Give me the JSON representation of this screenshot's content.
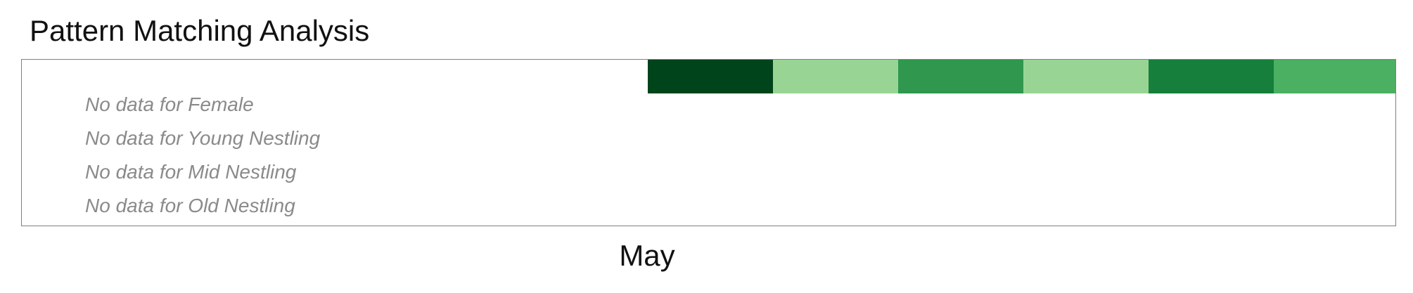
{
  "chart_data": {
    "type": "heatmap",
    "title": "Pattern Matching Analysis",
    "x_tick_labels": [
      "May"
    ],
    "rows": [
      {
        "name": "",
        "cells": [
          {
            "color": "#00441b"
          },
          {
            "color": "#98d594"
          },
          {
            "color": "#2f974e"
          },
          {
            "color": "#98d594"
          },
          {
            "color": "#157f3b"
          },
          {
            "color": "#4bb062"
          }
        ]
      },
      {
        "name": "Female",
        "message": "No data for Female"
      },
      {
        "name": "Young Nestling",
        "message": "No data for Young Nestling"
      },
      {
        "name": "Mid Nestling",
        "message": "No data for Mid Nestling"
      },
      {
        "name": "Old Nestling",
        "message": "No data for Old Nestling"
      }
    ],
    "grid": false,
    "legend": "none"
  }
}
